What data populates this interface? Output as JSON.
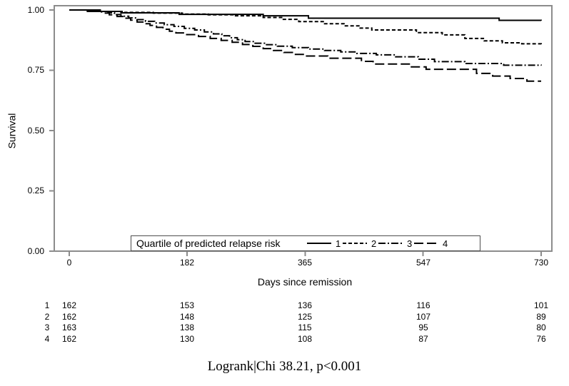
{
  "figure": {
    "background": "#ffffff",
    "axis_color": "#8c8c8c",
    "curve_color": "#000000"
  },
  "chart_data": {
    "type": "line",
    "subtype": "kaplan-meier-step",
    "title": "",
    "xlabel": "Days since remission",
    "ylabel": "Survival",
    "xlim": [
      0,
      730
    ],
    "ylim": [
      0.0,
      1.0
    ],
    "grid": "off",
    "x_tick_labels": [
      "0",
      "182",
      "365",
      "547",
      "730"
    ],
    "y_tick_labels": [
      "0.00",
      "0.25",
      "0.50",
      "0.75",
      "1.00"
    ],
    "legend": {
      "title": "Quartile of predicted relapse risk",
      "position": "bottom-inside"
    },
    "series": [
      {
        "name": "1",
        "line_style": "solid",
        "points": [
          [
            0,
            1.0
          ],
          [
            28,
            0.994
          ],
          [
            80,
            0.988
          ],
          [
            170,
            0.982
          ],
          [
            300,
            0.976
          ],
          [
            370,
            0.966
          ],
          [
            665,
            0.957
          ],
          [
            730,
            0.956
          ]
        ]
      },
      {
        "name": "2",
        "line_style": "dashed",
        "points": [
          [
            0,
            1.0
          ],
          [
            40,
            0.994
          ],
          [
            85,
            0.99
          ],
          [
            130,
            0.987
          ],
          [
            175,
            0.983
          ],
          [
            215,
            0.98
          ],
          [
            255,
            0.976
          ],
          [
            300,
            0.969
          ],
          [
            330,
            0.961
          ],
          [
            355,
            0.952
          ],
          [
            395,
            0.943
          ],
          [
            425,
            0.934
          ],
          [
            450,
            0.925
          ],
          [
            468,
            0.917
          ],
          [
            537,
            0.906
          ],
          [
            577,
            0.897
          ],
          [
            612,
            0.882
          ],
          [
            642,
            0.872
          ],
          [
            670,
            0.864
          ],
          [
            700,
            0.86
          ],
          [
            730,
            0.858
          ]
        ]
      },
      {
        "name": "3",
        "line_style": "dash-dot",
        "points": [
          [
            0,
            1.0
          ],
          [
            48,
            0.994
          ],
          [
            60,
            0.988
          ],
          [
            70,
            0.981
          ],
          [
            80,
            0.974
          ],
          [
            92,
            0.967
          ],
          [
            105,
            0.96
          ],
          [
            118,
            0.953
          ],
          [
            132,
            0.946
          ],
          [
            147,
            0.939
          ],
          [
            162,
            0.932
          ],
          [
            178,
            0.924
          ],
          [
            194,
            0.917
          ],
          [
            209,
            0.909
          ],
          [
            223,
            0.901
          ],
          [
            236,
            0.893
          ],
          [
            248,
            0.885
          ],
          [
            260,
            0.877
          ],
          [
            272,
            0.869
          ],
          [
            286,
            0.862
          ],
          [
            302,
            0.856
          ],
          [
            322,
            0.85
          ],
          [
            345,
            0.844
          ],
          [
            370,
            0.838
          ],
          [
            395,
            0.832
          ],
          [
            420,
            0.826
          ],
          [
            445,
            0.82
          ],
          [
            475,
            0.814
          ],
          [
            505,
            0.806
          ],
          [
            540,
            0.796
          ],
          [
            565,
            0.786
          ],
          [
            612,
            0.778
          ],
          [
            672,
            0.771
          ],
          [
            730,
            0.77
          ]
        ]
      },
      {
        "name": "4",
        "line_style": "long-dash",
        "points": [
          [
            0,
            1.0
          ],
          [
            35,
            0.994
          ],
          [
            50,
            0.987
          ],
          [
            62,
            0.98
          ],
          [
            74,
            0.973
          ],
          [
            85,
            0.966
          ],
          [
            95,
            0.958
          ],
          [
            105,
            0.95
          ],
          [
            115,
            0.943
          ],
          [
            125,
            0.936
          ],
          [
            135,
            0.928
          ],
          [
            145,
            0.92
          ],
          [
            155,
            0.912
          ],
          [
            165,
            0.905
          ],
          [
            180,
            0.898
          ],
          [
            200,
            0.89
          ],
          [
            218,
            0.882
          ],
          [
            235,
            0.874
          ],
          [
            252,
            0.866
          ],
          [
            268,
            0.857
          ],
          [
            284,
            0.849
          ],
          [
            300,
            0.84
          ],
          [
            316,
            0.832
          ],
          [
            332,
            0.824
          ],
          [
            348,
            0.816
          ],
          [
            365,
            0.809
          ],
          [
            400,
            0.8
          ],
          [
            452,
            0.787
          ],
          [
            470,
            0.776
          ],
          [
            528,
            0.764
          ],
          [
            552,
            0.754
          ],
          [
            630,
            0.737
          ],
          [
            655,
            0.726
          ],
          [
            682,
            0.716
          ],
          [
            708,
            0.705
          ],
          [
            730,
            0.705
          ]
        ]
      }
    ]
  },
  "risk_table": {
    "rows": [
      {
        "label": "1",
        "values": [
          "162",
          "153",
          "136",
          "116",
          "101"
        ]
      },
      {
        "label": "2",
        "values": [
          "162",
          "148",
          "125",
          "107",
          "89"
        ]
      },
      {
        "label": "3",
        "values": [
          "163",
          "138",
          "115",
          "95",
          "80"
        ]
      },
      {
        "label": "4",
        "values": [
          "162",
          "130",
          "108",
          "87",
          "76"
        ]
      }
    ]
  },
  "caption": "Logrank|Chi 38.21, p<0.001"
}
